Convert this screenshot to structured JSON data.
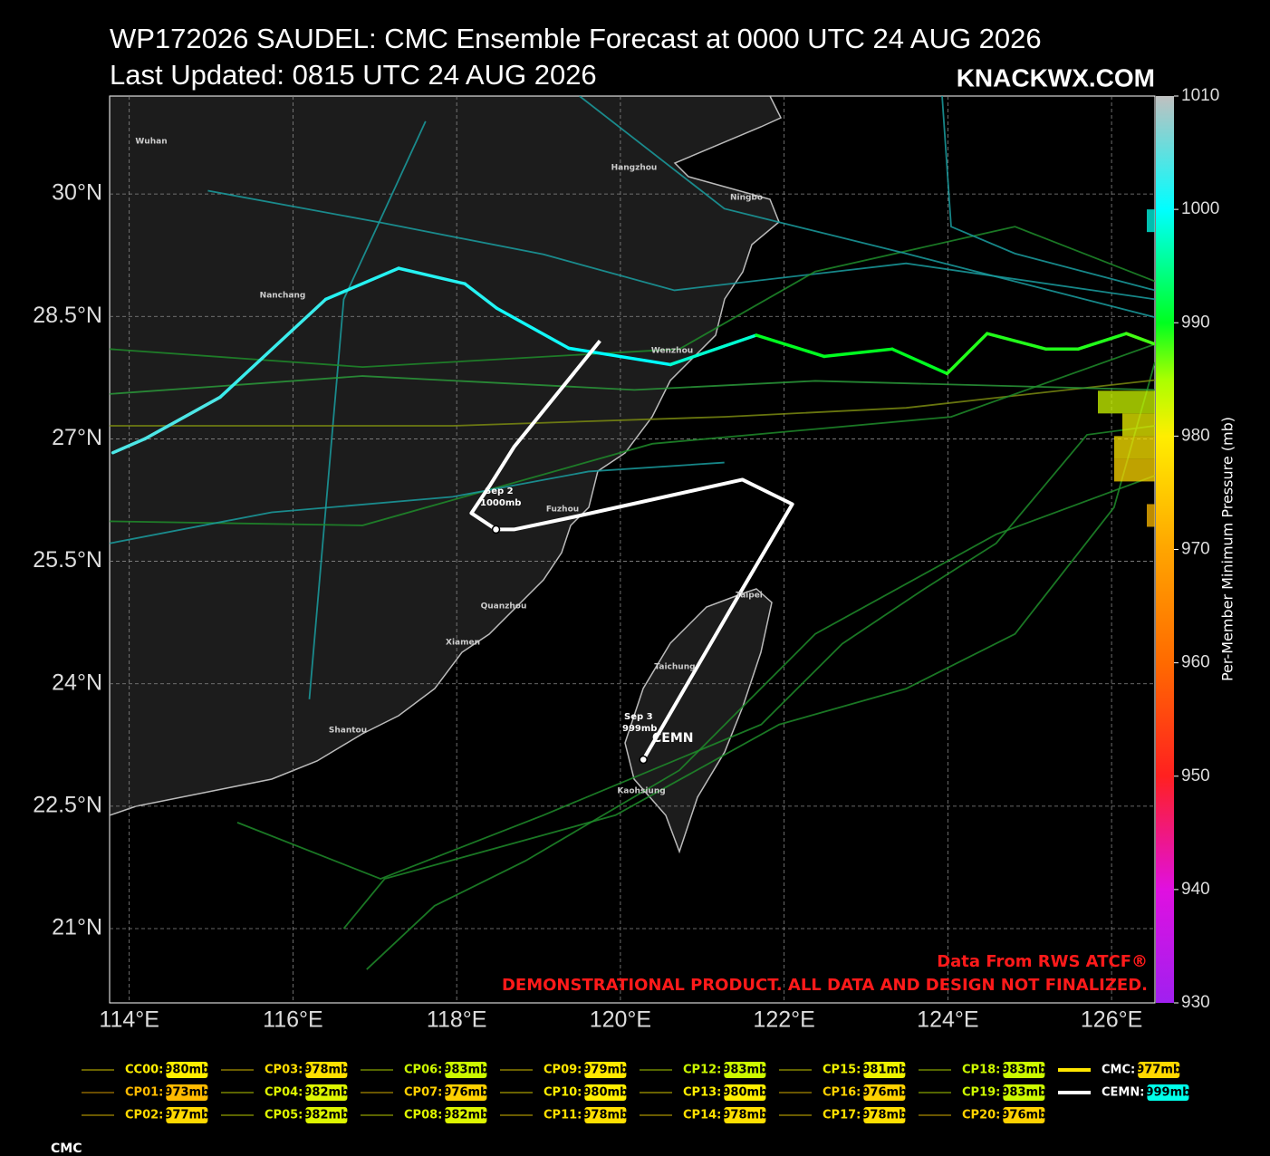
{
  "header": {
    "title": "WP172026 SAUDEL: CMC Ensemble Forecast at 0000 UTC 24 AUG 2026",
    "subtitle": "Last Updated: 0815 UTC 24 AUG 2026",
    "site": "KNACKWX.COM"
  },
  "map": {
    "xlim": [
      113.76,
      126.53
    ],
    "ylim": [
      20.09,
      31.2
    ],
    "xticks": [
      {
        "value": 114,
        "label": "114°E"
      },
      {
        "value": 116,
        "label": "116°E"
      },
      {
        "value": 118,
        "label": "118°E"
      },
      {
        "value": 120,
        "label": "120°E"
      },
      {
        "value": 122,
        "label": "122°E"
      },
      {
        "value": 124,
        "label": "124°E"
      },
      {
        "value": 126,
        "label": "126°E"
      }
    ],
    "yticks": [
      {
        "value": 21,
        "label": "21°N"
      },
      {
        "value": 22.5,
        "label": "22.5°N"
      },
      {
        "value": 24,
        "label": "24°N"
      },
      {
        "value": 25.5,
        "label": "25.5°N"
      },
      {
        "value": 27,
        "label": "27°N"
      },
      {
        "value": 28.5,
        "label": "28.5°N"
      },
      {
        "value": 30,
        "label": "30°N"
      }
    ],
    "grid": true,
    "cities": [
      "Wuhan",
      "Hangzhou",
      "Ningbo",
      "Nanchang",
      "Wenzhou",
      "Fuzhou",
      "Quanzhou",
      "Xiamen",
      "Taipei",
      "Taichung",
      "Shantou",
      "Kaohsiung"
    ],
    "tracks": [
      {
        "color": "#1a9da0",
        "lon": [
          126.53,
          123.49,
          120.66,
          119.06,
          117.07,
          114.96
        ],
        "lat": [
          28.71,
          29.15,
          28.82,
          29.26,
          29.65,
          30.04
        ]
      },
      {
        "color": "#1a9da0",
        "lon": [
          116.2,
          116.62,
          117.62
        ],
        "lat": [
          23.81,
          28.71,
          30.89
        ]
      },
      {
        "color": "#1e8c2a",
        "lon": [
          126.53,
          124.59,
          122.38,
          120.72,
          118.84,
          117.73,
          116.9
        ],
        "lat": [
          26.55,
          25.83,
          24.61,
          22.94,
          21.83,
          21.28,
          20.5
        ]
      },
      {
        "color": "#1e8c2a",
        "lon": [
          126.53,
          126.03,
          124.82,
          123.49,
          121.94,
          119.94,
          117.12,
          116.62
        ],
        "lat": [
          27.94,
          26.16,
          24.61,
          23.94,
          23.5,
          22.39,
          21.61,
          21.0
        ]
      },
      {
        "color": "#7a8a10",
        "lon": [
          126.53,
          123.49,
          121.27,
          117.95,
          113.76
        ],
        "lat": [
          27.72,
          27.38,
          27.27,
          27.16,
          27.16
        ]
      },
      {
        "color": "#2a9a3a",
        "lon": [
          126.53,
          122.38,
          120.17,
          116.85,
          113.76
        ],
        "lat": [
          27.6,
          27.71,
          27.6,
          27.77,
          27.55
        ]
      },
      {
        "color": "#1e8c2a",
        "lon": [
          126.53,
          124.82,
          122.38,
          120.72,
          116.85,
          113.76
        ],
        "lat": [
          28.93,
          29.6,
          29.05,
          28.1,
          27.88,
          28.1
        ]
      },
      {
        "color": "#1a9da0",
        "lon": [
          126.53,
          123.49,
          121.27,
          119.5
        ],
        "lat": [
          28.49,
          29.27,
          29.82,
          31.2
        ]
      },
      {
        "color": "#1e8c2a",
        "lon": [
          126.53,
          124.04,
          120.39,
          116.85,
          113.76
        ],
        "lat": [
          28.16,
          27.27,
          26.94,
          25.94,
          25.99
        ]
      },
      {
        "color": "#1a9da0",
        "lon": [
          113.76,
          115.74,
          117.95,
          119.61,
          121.27
        ],
        "lat": [
          25.72,
          26.1,
          26.29,
          26.6,
          26.71
        ]
      },
      {
        "color": "#1e8c2a",
        "lon": [
          126.53,
          125.7,
          124.59,
          123.71,
          122.71,
          121.72,
          119.06,
          117.07,
          115.32
        ],
        "lat": [
          27.16,
          27.05,
          25.72,
          25.16,
          24.49,
          23.5,
          22.39,
          21.61,
          22.3
        ]
      },
      {
        "color": "#1a9da0",
        "lon": [
          126.53,
          124.82,
          124.04,
          123.93
        ],
        "lat": [
          28.82,
          29.27,
          29.6,
          31.2
        ]
      }
    ],
    "cmc_track": {
      "lon": [
        113.8,
        114.19,
        115.11,
        116.4,
        117.29,
        118.1,
        118.49,
        119.37,
        120.61,
        121.66,
        122.49,
        123.32,
        123.99,
        124.48,
        125.2,
        125.59,
        126.18,
        126.53
      ],
      "lat": [
        26.83,
        27.0,
        27.51,
        28.71,
        29.09,
        28.9,
        28.6,
        28.11,
        27.91,
        28.27,
        28.01,
        28.1,
        27.8,
        28.29,
        28.1,
        28.1,
        28.29,
        28.16
      ],
      "pressure": [
        1004,
        1004,
        1003,
        1002,
        1002,
        1002,
        1001,
        1000,
        998,
        990,
        990,
        990,
        989,
        989,
        989,
        989,
        988,
        987
      ]
    },
    "cemn_track": {
      "color": "#ffffff",
      "lon": [
        119.75,
        118.7,
        118.4,
        118.18,
        118.48,
        118.7,
        119.46,
        121.49,
        122.1,
        121.49,
        120.28
      ],
      "lat": [
        28.2,
        26.9,
        26.42,
        26.09,
        25.89,
        25.89,
        26.05,
        26.5,
        26.2,
        25.16,
        23.07
      ]
    },
    "annotations": [
      "Sep  2",
      "1000mb",
      "Sep  3",
      "999mb",
      "CEMN"
    ],
    "credit": "Data From RWS ATCF®",
    "disclaimer": "DEMONSTRATIONAL PRODUCT. ALL DATA AND DESIGN NOT FINALIZED."
  },
  "colorbar": {
    "label": "Per-Member Minimum Pressure (mb)",
    "lim": [
      930,
      1010
    ],
    "ticks": [
      930,
      940,
      950,
      960,
      970,
      980,
      990,
      1000,
      1010
    ],
    "colormap": [
      {
        "value": 930,
        "color": "#a020f0"
      },
      {
        "value": 940,
        "color": "#e010e0"
      },
      {
        "value": 950,
        "color": "#ff2020"
      },
      {
        "value": 960,
        "color": "#ff6a00"
      },
      {
        "value": 970,
        "color": "#ffa500"
      },
      {
        "value": 980,
        "color": "#ffee00"
      },
      {
        "value": 985,
        "color": "#aaff00"
      },
      {
        "value": 990,
        "color": "#00ff20"
      },
      {
        "value": 1000,
        "color": "#00ffff"
      },
      {
        "value": 1010,
        "color": "#c0c0c0"
      }
    ]
  },
  "legend": [
    {
      "name": "CC00:",
      "value": 980,
      "value_label": "980mb"
    },
    {
      "name": "CP01:",
      "value": 973,
      "value_label": "973mb"
    },
    {
      "name": "CP02:",
      "value": 977,
      "value_label": "977mb"
    },
    {
      "name": "CP03:",
      "value": 978,
      "value_label": "978mb"
    },
    {
      "name": "CP04:",
      "value": 982,
      "value_label": "982mb"
    },
    {
      "name": "CP05:",
      "value": 982,
      "value_label": "982mb"
    },
    {
      "name": "CP06:",
      "value": 983,
      "value_label": "983mb"
    },
    {
      "name": "CP07:",
      "value": 976,
      "value_label": "976mb"
    },
    {
      "name": "CP08:",
      "value": 982,
      "value_label": "982mb"
    },
    {
      "name": "CP09:",
      "value": 979,
      "value_label": "979mb"
    },
    {
      "name": "CP10:",
      "value": 980,
      "value_label": "980mb"
    },
    {
      "name": "CP11:",
      "value": 978,
      "value_label": "978mb"
    },
    {
      "name": "CP12:",
      "value": 983,
      "value_label": "983mb"
    },
    {
      "name": "CP13:",
      "value": 980,
      "value_label": "980mb"
    },
    {
      "name": "CP14:",
      "value": 978,
      "value_label": "978mb"
    },
    {
      "name": "CP15:",
      "value": 981,
      "value_label": "981mb"
    },
    {
      "name": "CP16:",
      "value": 976,
      "value_label": "976mb"
    },
    {
      "name": "CP17:",
      "value": 978,
      "value_label": "978mb"
    },
    {
      "name": "CP18:",
      "value": 983,
      "value_label": "983mb"
    },
    {
      "name": "CP19:",
      "value": 983,
      "value_label": "983mb"
    },
    {
      "name": "CP20:",
      "value": 976,
      "value_label": "976mb"
    },
    {
      "name": "CMC:",
      "value": 977,
      "value_label": "977mb",
      "color": "#ffe600"
    },
    {
      "name": "CEMN:",
      "value": 999,
      "value_label": "999mb",
      "color": "#ffffff"
    }
  ],
  "footer": "CMC"
}
